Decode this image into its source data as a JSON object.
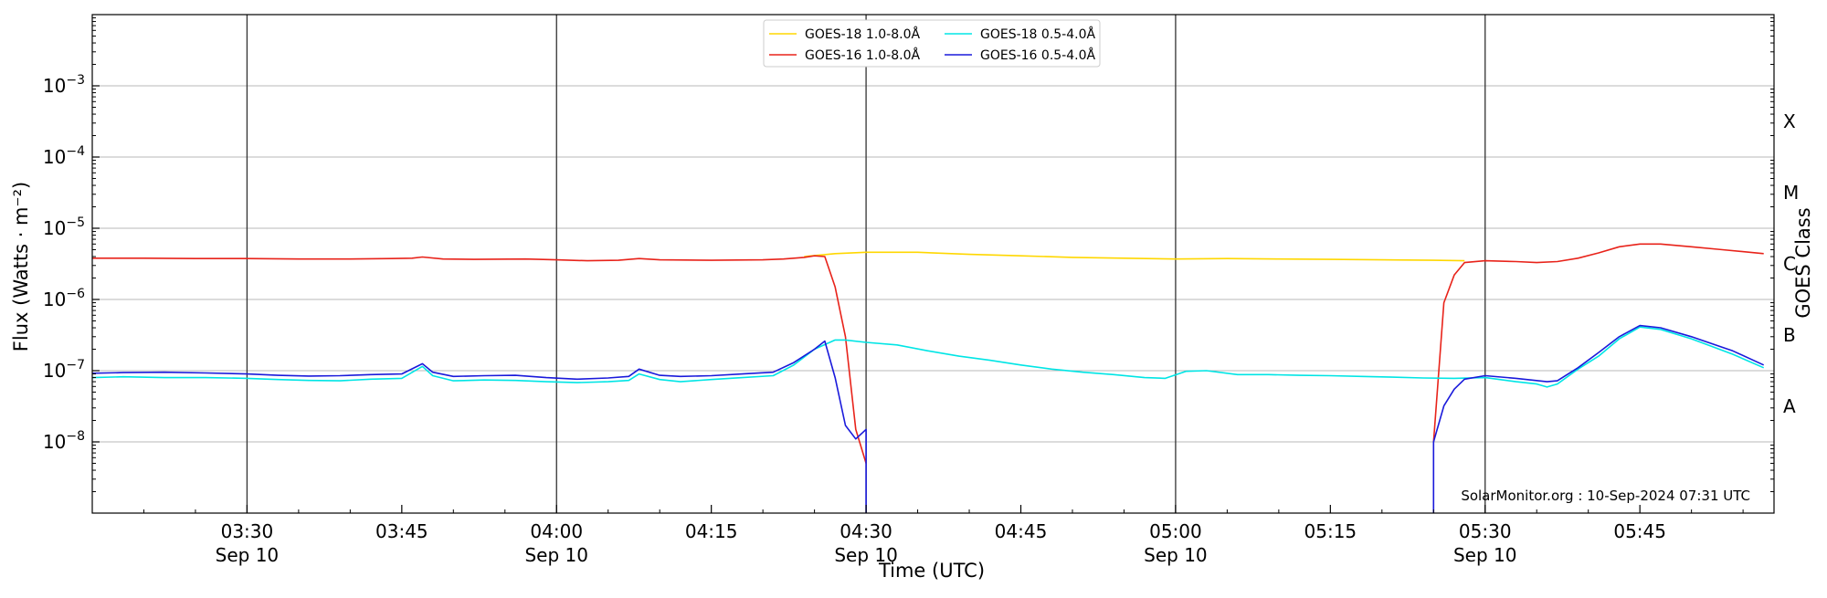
{
  "chart_data": {
    "type": "line",
    "title": "",
    "xlabel": "Time (UTC)",
    "ylabel": "Flux (Watts · m⁻²)",
    "right_ylabel": "GOES Class",
    "y_scale": "log",
    "ylim": [
      1e-09,
      0.01
    ],
    "xlim": [
      "03:15",
      "05:58"
    ],
    "grid": "horizontal at decades",
    "legend_placement": "top-center",
    "credit": "SolarMonitor.org : 10-Sep-2024 07:31 UTC",
    "y_ticks": [
      {
        "value": 1e-08,
        "base": "10",
        "exp": "−8"
      },
      {
        "value": 1e-07,
        "base": "10",
        "exp": "−7"
      },
      {
        "value": 1e-06,
        "base": "10",
        "exp": "−6"
      },
      {
        "value": 1e-05,
        "base": "10",
        "exp": "−5"
      },
      {
        "value": 0.0001,
        "base": "10",
        "exp": "−4"
      },
      {
        "value": 0.001,
        "base": "10",
        "exp": "−3"
      }
    ],
    "x_ticks": [
      {
        "time": "03:30",
        "label": "03:30",
        "date": "Sep 10"
      },
      {
        "time": "03:45",
        "label": "03:45",
        "date": ""
      },
      {
        "time": "04:00",
        "label": "04:00",
        "date": "Sep 10"
      },
      {
        "time": "04:15",
        "label": "04:15",
        "date": ""
      },
      {
        "time": "04:30",
        "label": "04:30",
        "date": "Sep 10"
      },
      {
        "time": "04:45",
        "label": "04:45",
        "date": ""
      },
      {
        "time": "05:00",
        "label": "05:00",
        "date": "Sep 10"
      },
      {
        "time": "05:15",
        "label": "05:15",
        "date": ""
      },
      {
        "time": "05:30",
        "label": "05:30",
        "date": "Sep 10"
      },
      {
        "time": "05:45",
        "label": "05:45",
        "date": ""
      }
    ],
    "vertical_lines": [
      "03:30",
      "04:00",
      "04:30",
      "05:00",
      "05:30"
    ],
    "goes_classes": [
      {
        "label": "A",
        "flux": 3.16e-08
      },
      {
        "label": "B",
        "flux": 3.16e-07
      },
      {
        "label": "C",
        "flux": 3.16e-06
      },
      {
        "label": "M",
        "flux": 3.16e-05
      },
      {
        "label": "X",
        "flux": 0.000316
      }
    ],
    "series": [
      {
        "name": "GOES-18 1.0-8.0Å",
        "color": "#ffd700",
        "points": [
          [
            "04:24",
            4e-06
          ],
          [
            "04:27",
            4.4e-06
          ],
          [
            "04:30",
            4.6e-06
          ],
          [
            "04:35",
            4.6e-06
          ],
          [
            "04:40",
            4.3e-06
          ],
          [
            "04:45",
            4.1e-06
          ],
          [
            "04:50",
            3.9e-06
          ],
          [
            "04:55",
            3.8e-06
          ],
          [
            "05:00",
            3.7e-06
          ],
          [
            "05:05",
            3.75e-06
          ],
          [
            "05:10",
            3.7e-06
          ],
          [
            "05:15",
            3.65e-06
          ],
          [
            "05:20",
            3.6e-06
          ],
          [
            "05:25",
            3.55e-06
          ],
          [
            "05:28",
            3.5e-06
          ]
        ]
      },
      {
        "name": "GOES-16 1.0-8.0Å",
        "color": "#e8231a",
        "points": [
          [
            "03:15",
            3.8e-06
          ],
          [
            "03:20",
            3.8e-06
          ],
          [
            "03:25",
            3.75e-06
          ],
          [
            "03:30",
            3.75e-06
          ],
          [
            "03:35",
            3.7e-06
          ],
          [
            "03:40",
            3.7e-06
          ],
          [
            "03:44",
            3.75e-06
          ],
          [
            "03:46",
            3.8e-06
          ],
          [
            "03:47",
            3.95e-06
          ],
          [
            "03:49",
            3.7e-06
          ],
          [
            "03:52",
            3.65e-06
          ],
          [
            "03:57",
            3.7e-06
          ],
          [
            "04:00",
            3.6e-06
          ],
          [
            "04:03",
            3.5e-06
          ],
          [
            "04:06",
            3.55e-06
          ],
          [
            "04:08",
            3.75e-06
          ],
          [
            "04:10",
            3.6e-06
          ],
          [
            "04:15",
            3.55e-06
          ],
          [
            "04:20",
            3.6e-06
          ],
          [
            "04:22",
            3.7e-06
          ],
          [
            "04:24",
            3.9e-06
          ],
          [
            "04:25",
            4.1e-06
          ],
          [
            "04:26",
            4e-06
          ],
          [
            "04:27",
            1.5e-06
          ],
          [
            "04:28",
            3e-07
          ],
          [
            "04:29",
            1.5e-08
          ],
          [
            "04:30",
            5e-09
          ]
        ]
      },
      {
        "name": "GOES-16 1.0-8.0Å (cont.)",
        "color": "#e8231a",
        "points": [
          [
            "05:25",
            1e-08
          ],
          [
            "05:26",
            9e-07
          ],
          [
            "05:27",
            2.2e-06
          ],
          [
            "05:28",
            3.3e-06
          ],
          [
            "05:30",
            3.5e-06
          ],
          [
            "05:33",
            3.4e-06
          ],
          [
            "05:35",
            3.3e-06
          ],
          [
            "05:37",
            3.4e-06
          ],
          [
            "05:39",
            3.8e-06
          ],
          [
            "05:41",
            4.5e-06
          ],
          [
            "05:43",
            5.5e-06
          ],
          [
            "05:45",
            6e-06
          ],
          [
            "05:47",
            6e-06
          ],
          [
            "05:50",
            5.5e-06
          ],
          [
            "05:53",
            5e-06
          ],
          [
            "05:57",
            4.4e-06
          ]
        ]
      },
      {
        "name": "GOES-18 0.5-4.0Å",
        "color": "#00e5e5",
        "points": [
          [
            "03:15",
            8e-08
          ],
          [
            "03:18",
            8.2e-08
          ],
          [
            "03:22",
            8e-08
          ],
          [
            "03:26",
            8e-08
          ],
          [
            "03:30",
            7.8e-08
          ],
          [
            "03:33",
            7.5e-08
          ],
          [
            "03:36",
            7.3e-08
          ],
          [
            "03:39",
            7.2e-08
          ],
          [
            "03:42",
            7.6e-08
          ],
          [
            "03:45",
            7.8e-08
          ],
          [
            "03:47",
            1.15e-07
          ],
          [
            "03:48",
            8.5e-08
          ],
          [
            "03:50",
            7.2e-08
          ],
          [
            "03:53",
            7.4e-08
          ],
          [
            "03:56",
            7.3e-08
          ],
          [
            "03:59",
            7e-08
          ],
          [
            "04:02",
            6.8e-08
          ],
          [
            "04:05",
            7e-08
          ],
          [
            "04:07",
            7.3e-08
          ],
          [
            "04:08",
            9e-08
          ],
          [
            "04:10",
            7.5e-08
          ],
          [
            "04:12",
            7e-08
          ],
          [
            "04:15",
            7.5e-08
          ],
          [
            "04:18",
            8e-08
          ],
          [
            "04:21",
            8.5e-08
          ],
          [
            "04:23",
            1.2e-07
          ],
          [
            "04:25",
            2e-07
          ],
          [
            "04:27",
            2.7e-07
          ],
          [
            "04:28",
            2.7e-07
          ],
          [
            "04:30",
            2.5e-07
          ],
          [
            "04:33",
            2.3e-07
          ],
          [
            "04:36",
            1.9e-07
          ],
          [
            "04:39",
            1.6e-07
          ],
          [
            "04:42",
            1.4e-07
          ],
          [
            "04:45",
            1.2e-07
          ],
          [
            "04:48",
            1.05e-07
          ],
          [
            "04:51",
            9.5e-08
          ],
          [
            "04:54",
            8.8e-08
          ],
          [
            "04:57",
            8e-08
          ],
          [
            "04:59",
            7.8e-08
          ],
          [
            "05:01",
            9.8e-08
          ],
          [
            "05:03",
            1e-07
          ],
          [
            "05:06",
            8.8e-08
          ],
          [
            "05:09",
            8.8e-08
          ],
          [
            "05:12",
            8.6e-08
          ],
          [
            "05:15",
            8.5e-08
          ],
          [
            "05:18",
            8.3e-08
          ],
          [
            "05:21",
            8.1e-08
          ],
          [
            "05:24",
            7.9e-08
          ],
          [
            "05:27",
            7.8e-08
          ],
          [
            "05:30",
            8e-08
          ],
          [
            "05:33",
            7e-08
          ],
          [
            "05:35",
            6.5e-08
          ],
          [
            "05:36",
            5.9e-08
          ],
          [
            "05:37",
            6.5e-08
          ],
          [
            "05:39",
            1.05e-07
          ],
          [
            "05:41",
            1.6e-07
          ],
          [
            "05:43",
            2.8e-07
          ],
          [
            "05:45",
            4.1e-07
          ],
          [
            "05:47",
            3.8e-07
          ],
          [
            "05:50",
            2.8e-07
          ],
          [
            "05:54",
            1.7e-07
          ],
          [
            "05:57",
            1.1e-07
          ]
        ]
      },
      {
        "name": "GOES-16 0.5-4.0Å",
        "color": "#1a1adb",
        "points": [
          [
            "03:15",
            9.2e-08
          ],
          [
            "03:18",
            9.4e-08
          ],
          [
            "03:22",
            9.5e-08
          ],
          [
            "03:26",
            9.3e-08
          ],
          [
            "03:30",
            9e-08
          ],
          [
            "03:33",
            8.6e-08
          ],
          [
            "03:36",
            8.4e-08
          ],
          [
            "03:39",
            8.5e-08
          ],
          [
            "03:42",
            8.8e-08
          ],
          [
            "03:45",
            9e-08
          ],
          [
            "03:47",
            1.25e-07
          ],
          [
            "03:48",
            9.5e-08
          ],
          [
            "03:50",
            8.3e-08
          ],
          [
            "03:53",
            8.5e-08
          ],
          [
            "03:56",
            8.6e-08
          ],
          [
            "03:59",
            8e-08
          ],
          [
            "04:02",
            7.6e-08
          ],
          [
            "04:05",
            7.9e-08
          ],
          [
            "04:07",
            8.3e-08
          ],
          [
            "04:08",
            1.05e-07
          ],
          [
            "04:10",
            8.6e-08
          ],
          [
            "04:12",
            8.3e-08
          ],
          [
            "04:15",
            8.5e-08
          ],
          [
            "04:18",
            9e-08
          ],
          [
            "04:21",
            9.5e-08
          ],
          [
            "04:23",
            1.3e-07
          ],
          [
            "04:25",
            2e-07
          ],
          [
            "04:26",
            2.6e-07
          ],
          [
            "04:27",
            8e-08
          ],
          [
            "04:28",
            1.7e-08
          ],
          [
            "04:29",
            1.1e-08
          ],
          [
            "04:30",
            1.5e-08
          ],
          [
            "04:30",
            1e-09
          ]
        ]
      },
      {
        "name": "GOES-16 0.5-4.0Å (cont.)",
        "color": "#1a1adb",
        "points": [
          [
            "05:25",
            1e-09
          ],
          [
            "05:25",
            1e-08
          ],
          [
            "05:26",
            3.2e-08
          ],
          [
            "05:27",
            5.5e-08
          ],
          [
            "05:28",
            7.6e-08
          ],
          [
            "05:30",
            8.5e-08
          ],
          [
            "05:33",
            7.8e-08
          ],
          [
            "05:36",
            7e-08
          ],
          [
            "05:37",
            7.2e-08
          ],
          [
            "05:39",
            1.1e-07
          ],
          [
            "05:41",
            1.8e-07
          ],
          [
            "05:43",
            3e-07
          ],
          [
            "05:45",
            4.3e-07
          ],
          [
            "05:47",
            4e-07
          ],
          [
            "05:50",
            3e-07
          ],
          [
            "05:54",
            1.9e-07
          ],
          [
            "05:57",
            1.2e-07
          ]
        ]
      }
    ],
    "legend": [
      {
        "label": "GOES-18 1.0-8.0Å",
        "color": "#ffd700"
      },
      {
        "label": "GOES-18 0.5-4.0Å",
        "color": "#00e5e5"
      },
      {
        "label": "GOES-16 1.0-8.0Å",
        "color": "#e8231a"
      },
      {
        "label": "GOES-16 0.5-4.0Å",
        "color": "#1a1adb"
      }
    ]
  }
}
